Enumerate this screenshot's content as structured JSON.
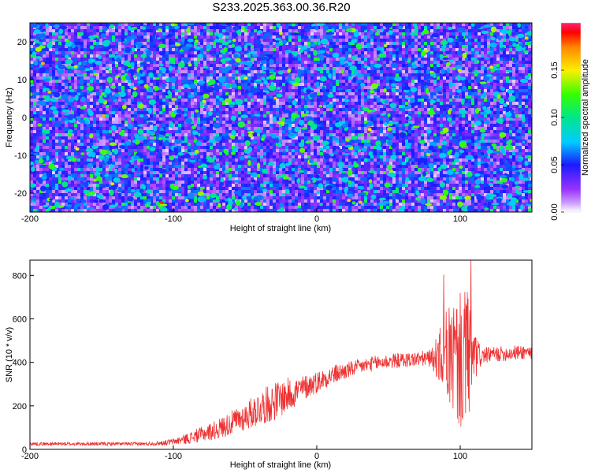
{
  "figure": {
    "title": "S233.2025.363.00.36.R20"
  },
  "chart_data": [
    {
      "type": "heatmap",
      "xlabel": "Height of straight line (km)",
      "ylabel": "Frequency (Hz)",
      "xlim": [
        -200,
        150
      ],
      "ylim": [
        -25,
        25
      ],
      "x_ticks": [
        -200,
        -100,
        0,
        100
      ],
      "y_ticks": [
        -20,
        -10,
        0,
        10,
        20
      ],
      "colorbar": {
        "label": "Normalized spectral amplitude",
        "range": [
          0.0,
          0.2
        ],
        "ticks": [
          0.0,
          0.05,
          0.1,
          0.15
        ],
        "tick_labels": [
          "0.00",
          "0.05",
          "0.10",
          "0.15"
        ],
        "colors": [
          "#ffffff",
          "#9933ff",
          "#1a1aff",
          "#00ccff",
          "#00e68a",
          "#33ff00",
          "#ffee00",
          "#ff8800",
          "#ff0000",
          "#ff2277"
        ]
      },
      "value_summary": {
        "typical_range": [
          0.02,
          0.07
        ],
        "typical_colors": "purple to blue speckle, cyan blobs",
        "max_observed": 0.17
      }
    },
    {
      "type": "line",
      "xlabel": "Height of straight line (km)",
      "ylabel": "SNR (10 * v/v)",
      "xlim": [
        -200,
        150
      ],
      "ylim": [
        0,
        870
      ],
      "x_ticks": [
        -200,
        -100,
        0,
        100
      ],
      "y_ticks": [
        0,
        200,
        400,
        600,
        800
      ],
      "series": [
        {
          "color": "#ee3333",
          "x": [
            -200,
            -190,
            -180,
            -170,
            -160,
            -150,
            -140,
            -130,
            -120,
            -110,
            -100,
            -90,
            -80,
            -70,
            -60,
            -50,
            -40,
            -30,
            -20,
            -10,
            0,
            10,
            20,
            30,
            40,
            50,
            60,
            70,
            80,
            85,
            90,
            95,
            100,
            105,
            110,
            115,
            120,
            130,
            140,
            150
          ],
          "y": [
            25,
            25,
            25,
            25,
            25,
            25,
            25,
            25,
            25,
            28,
            35,
            50,
            70,
            90,
            120,
            150,
            190,
            220,
            250,
            280,
            310,
            340,
            360,
            380,
            395,
            405,
            410,
            415,
            420,
            425,
            430,
            420,
            400,
            410,
            420,
            430,
            435,
            440,
            445,
            450
          ],
          "noise": [
            8,
            8,
            8,
            8,
            8,
            8,
            8,
            8,
            8,
            10,
            15,
            25,
            35,
            45,
            55,
            65,
            80,
            90,
            80,
            60,
            50,
            45,
            40,
            35,
            35,
            35,
            35,
            35,
            40,
            120,
            200,
            280,
            320,
            330,
            120,
            40,
            35,
            35,
            35,
            35
          ]
        }
      ]
    }
  ]
}
